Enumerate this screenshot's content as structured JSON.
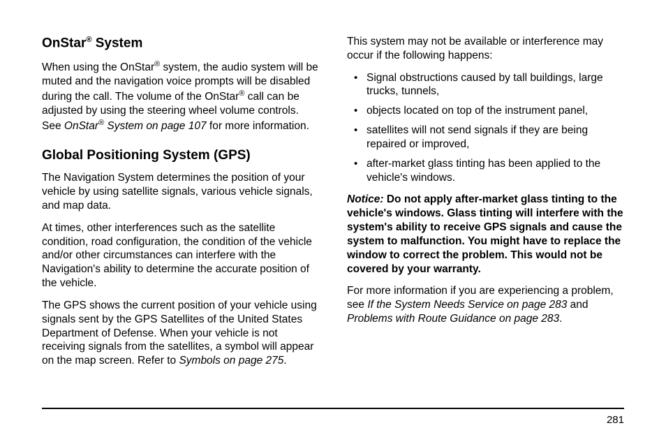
{
  "left": {
    "h1_pre": "OnStar",
    "h1_post": " System",
    "p1a": "When using the OnStar",
    "p1b": " system, the audio system will be muted and the navigation voice prompts will be disabled during the call. The volume of the OnStar",
    "p1c": " call can be adjusted by using the steering wheel volume controls. See ",
    "p1_ref_a": "OnStar",
    "p1_ref_b": " System on page 107",
    "p1d": " for more information.",
    "h2": "Global Positioning System (GPS)",
    "p2": "The Navigation System determines the position of your vehicle by using satellite signals, various vehicle signals, and map data.",
    "p3": "At times, other interferences such as the satellite condition, road configuration, the condition of the vehicle and/or other circumstances can interfere with the Navigation's ability to determine the accurate position of the vehicle.",
    "p4a": "The GPS shows the current position of your vehicle using signals sent by the GPS Satellites of the United States Department of Defense. When your vehicle is not receiving signals from the satellites, a symbol will appear on the map screen. Refer to ",
    "p4_ref": "Symbols on page 275",
    "p4b": "."
  },
  "right": {
    "p1": "This system may not be available or interference may occur if the following happens:",
    "bullets": [
      "Signal obstructions caused by tall buildings, large trucks, tunnels,",
      "objects located on top of the instrument panel,",
      "satellites will not send signals if they are being repaired or improved,",
      "after-market glass tinting has been applied to the vehicle's windows."
    ],
    "notice_label": "Notice:",
    "notice_body": "   Do not apply after-market glass tinting to the vehicle's windows. Glass tinting will interfere with the system's ability to receive GPS signals and cause the system to malfunction. You might have to replace the window to correct the problem. This would not be covered by your warranty.",
    "p2a": "For more information if you are experiencing a problem, see ",
    "p2_ref1": "If the System Needs Service on page 283",
    "p2b": " and ",
    "p2_ref2": "Problems with Route Guidance on page 283",
    "p2c": "."
  },
  "page_number": "281",
  "reg_symbol": "®"
}
